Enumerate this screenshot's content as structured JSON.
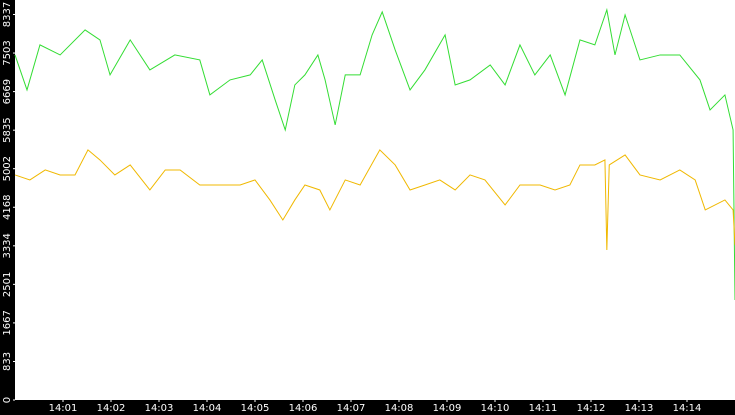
{
  "chart_data": {
    "type": "line",
    "xlim": [
      0,
      15
    ],
    "ylim": [
      0,
      8650
    ],
    "yticks": [
      0,
      833,
      1667,
      2501,
      3334,
      4168,
      5002,
      5835,
      6669,
      7503,
      8337
    ],
    "xticks": [
      {
        "value": 1,
        "label": "14:01"
      },
      {
        "value": 2,
        "label": "14:02"
      },
      {
        "value": 3,
        "label": "14:03"
      },
      {
        "value": 4,
        "label": "14:04"
      },
      {
        "value": 5,
        "label": "14:05"
      },
      {
        "value": 6,
        "label": "14:06"
      },
      {
        "value": 7,
        "label": "14:07"
      },
      {
        "value": 8,
        "label": "14:08"
      },
      {
        "value": 9,
        "label": "14:09"
      },
      {
        "value": 10,
        "label": "14:10"
      },
      {
        "value": 11,
        "label": "14:11"
      },
      {
        "value": 12,
        "label": "14:12"
      },
      {
        "value": 13,
        "label": "14:13"
      },
      {
        "value": 14,
        "label": "14:14"
      }
    ],
    "grid": false,
    "series": [
      {
        "color": "#33dd33",
        "x": [
          0,
          0.25,
          0.52,
          0.94,
          1.46,
          1.77,
          1.98,
          2.4,
          2.81,
          3.33,
          3.85,
          4.06,
          4.48,
          4.9,
          5.15,
          5.42,
          5.63,
          5.83,
          6.04,
          6.31,
          6.46,
          6.67,
          6.88,
          7.19,
          7.44,
          7.65,
          7.92,
          8.23,
          8.54,
          8.96,
          9.17,
          9.48,
          9.9,
          10.21,
          10.52,
          10.83,
          11.15,
          11.46,
          11.77,
          12.08,
          12.33,
          12.5,
          12.71,
          13.02,
          13.44,
          13.85,
          14.27,
          14.48,
          14.79,
          14.96,
          15
        ],
        "values": [
          7462,
          6705,
          7679,
          7462,
          8003,
          7787,
          7030,
          7787,
          7138,
          7462,
          7354,
          6597,
          6922,
          7030,
          7354,
          6489,
          5840,
          6813,
          7030,
          7462,
          6922,
          5948,
          7030,
          7030,
          7895,
          8392,
          7571,
          6705,
          7138,
          7895,
          6813,
          6922,
          7246,
          6813,
          7679,
          7030,
          7462,
          6597,
          7787,
          7679,
          8436,
          7462,
          8328,
          7354,
          7462,
          7462,
          6922,
          6273,
          6597,
          5840,
          2163
        ]
      },
      {
        "color": "#f0b800",
        "x": [
          0,
          0.31,
          0.63,
          0.94,
          1.25,
          1.52,
          1.77,
          2.08,
          2.4,
          2.81,
          3.13,
          3.44,
          3.85,
          4.27,
          4.69,
          5,
          5.31,
          5.58,
          5.83,
          6.04,
          6.35,
          6.56,
          6.88,
          7.19,
          7.6,
          7.92,
          8.23,
          8.54,
          8.85,
          9.17,
          9.48,
          9.79,
          10.21,
          10.52,
          10.94,
          11.25,
          11.56,
          11.77,
          12.08,
          12.29,
          12.33,
          12.38,
          12.71,
          13.02,
          13.44,
          13.85,
          14.17,
          14.38,
          14.79,
          14.96,
          15
        ],
        "values": [
          4867,
          4759,
          4975,
          4867,
          4867,
          5408,
          5191,
          4867,
          5083,
          4542,
          4975,
          4975,
          4650,
          4650,
          4650,
          4759,
          4326,
          3893,
          4326,
          4650,
          4542,
          4110,
          4759,
          4650,
          5408,
          5083,
          4542,
          4650,
          4759,
          4542,
          4867,
          4759,
          4218,
          4650,
          4650,
          4542,
          4650,
          5083,
          5083,
          5191,
          3245,
          5083,
          5300,
          4867,
          4759,
          4975,
          4759,
          4110,
          4326,
          4110,
          3353
        ]
      }
    ]
  }
}
